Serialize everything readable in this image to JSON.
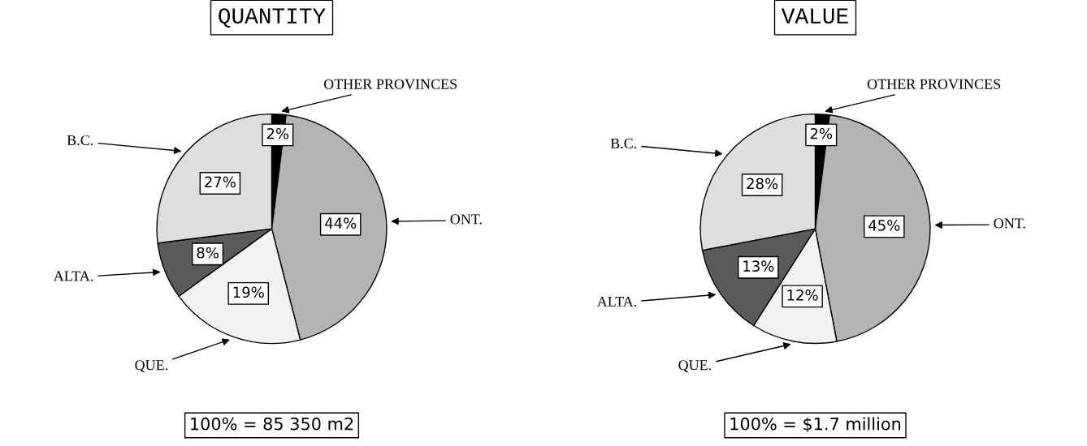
{
  "chart_data": [
    {
      "type": "pie",
      "title": "QUANTITY",
      "categories": [
        "OTHER PROVINCES",
        "ONT.",
        "QUE.",
        "ALTA.",
        "B.C."
      ],
      "values": [
        2,
        44,
        19,
        8,
        27
      ],
      "value_labels": [
        "2%",
        "44%",
        "19%",
        "8%",
        "27%"
      ],
      "colors": [
        "#000000",
        "#b4b4b4",
        "#f2f2f2",
        "#5a5a5a",
        "#dedede"
      ],
      "annotations": [
        "100% = 85 350 m2"
      ]
    },
    {
      "type": "pie",
      "title": "VALUE",
      "categories": [
        "OTHER PROVINCES",
        "ONT.",
        "QUE.",
        "ALTA.",
        "B.C."
      ],
      "values": [
        2,
        45,
        12,
        13,
        28
      ],
      "value_labels": [
        "2%",
        "45%",
        "12%",
        "13%",
        "28%"
      ],
      "colors": [
        "#000000",
        "#b4b4b4",
        "#f2f2f2",
        "#5a5a5a",
        "#dedede"
      ],
      "annotations": [
        "100% = $1.7 million"
      ]
    }
  ]
}
